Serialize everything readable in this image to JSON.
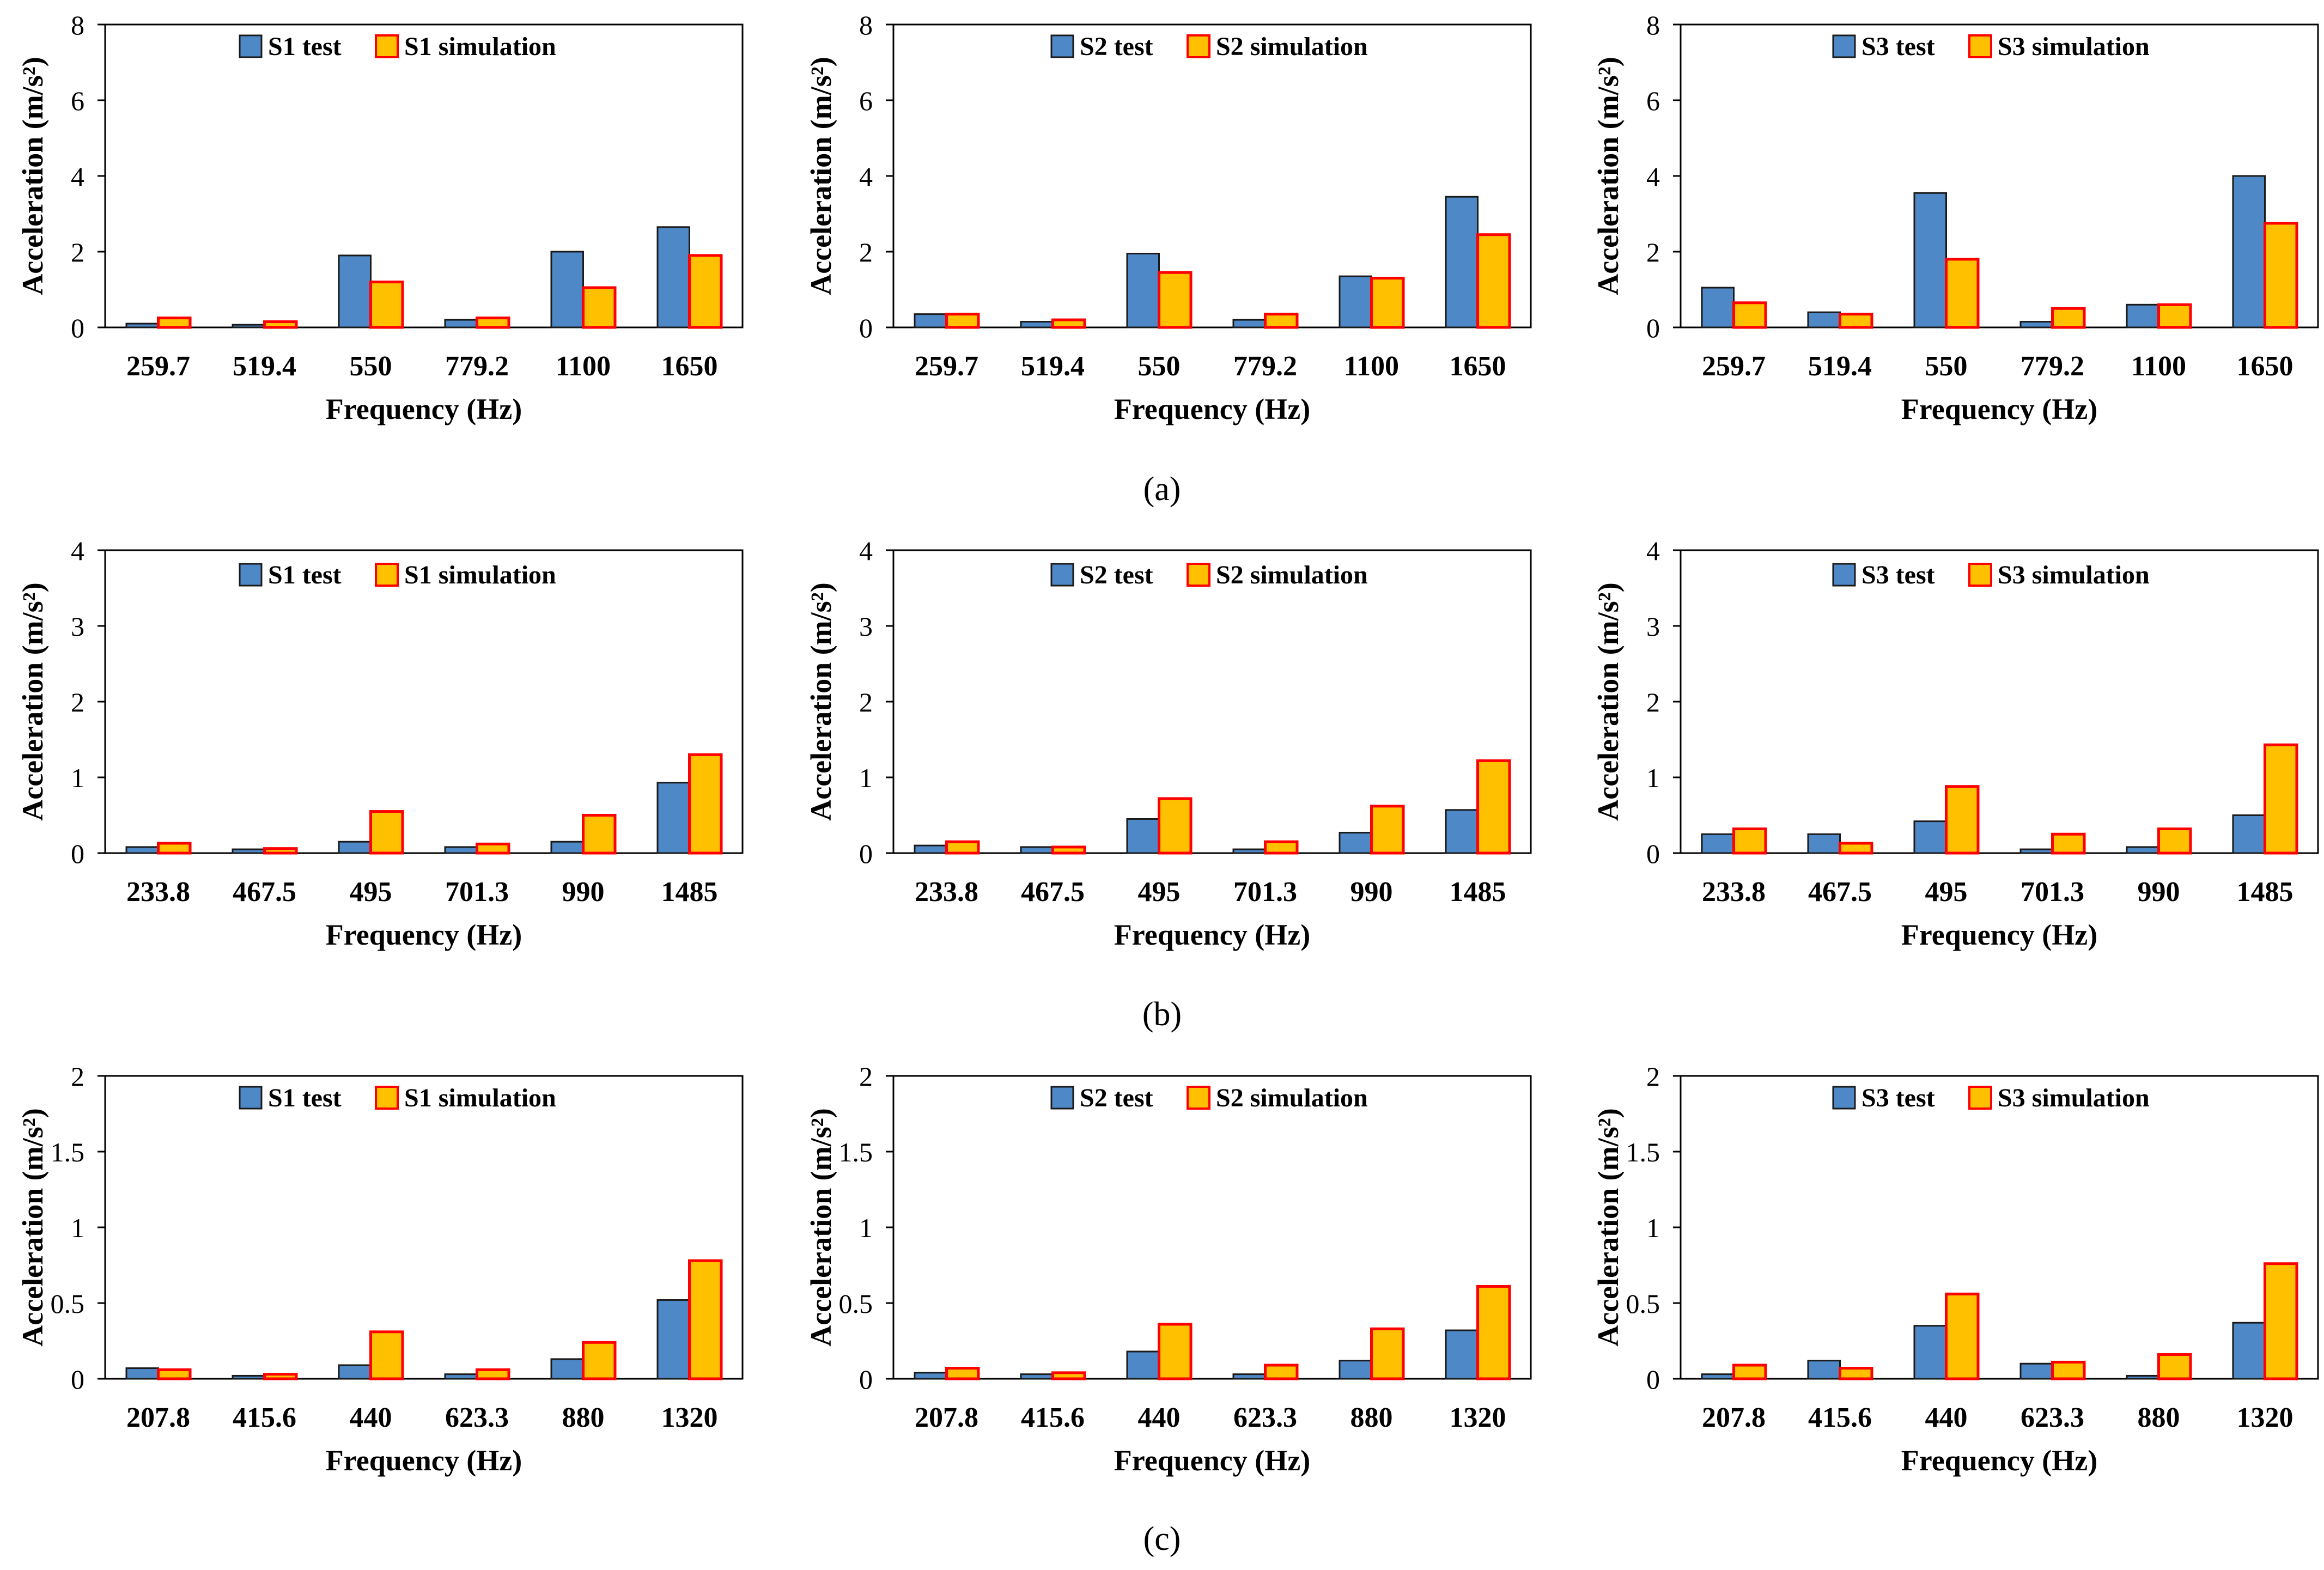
{
  "figure": {
    "captions": [
      "(a)",
      "(b)",
      "(c)"
    ],
    "colors": {
      "test": "#4f88c6",
      "test_stroke": "#1a1a1a",
      "simulation": "#ffc000",
      "simulation_stroke": "#ff0000",
      "axis": "#000000"
    }
  },
  "chart_data": [
    {
      "type": "bar",
      "row": "a",
      "title": "",
      "xlabel": "Frequency (Hz)",
      "ylabel": "Acceleration (m/s²)",
      "ylim": [
        0,
        8
      ],
      "yticks": [
        "0",
        "2",
        "4",
        "6",
        "8"
      ],
      "categories": [
        "259.7",
        "519.4",
        "550",
        "779.2",
        "1100",
        "1650"
      ],
      "series": [
        {
          "name": "S1 test",
          "values": [
            0.1,
            0.07,
            1.9,
            0.2,
            2.0,
            2.65
          ]
        },
        {
          "name": "S1 simulation",
          "values": [
            0.25,
            0.15,
            1.2,
            0.25,
            1.05,
            1.9
          ]
        }
      ],
      "legend": "top-center"
    },
    {
      "type": "bar",
      "row": "a",
      "title": "",
      "xlabel": "Frequency (Hz)",
      "ylabel": "Acceleration (m/s²)",
      "ylim": [
        0,
        8
      ],
      "yticks": [
        "0",
        "2",
        "4",
        "6",
        "8"
      ],
      "categories": [
        "259.7",
        "519.4",
        "550",
        "779.2",
        "1100",
        "1650"
      ],
      "series": [
        {
          "name": "S2 test",
          "values": [
            0.35,
            0.15,
            1.95,
            0.2,
            1.35,
            3.45
          ]
        },
        {
          "name": "S2 simulation",
          "values": [
            0.35,
            0.2,
            1.45,
            0.35,
            1.3,
            2.45
          ]
        }
      ],
      "legend": "top-center"
    },
    {
      "type": "bar",
      "row": "a",
      "title": "",
      "xlabel": "Frequency (Hz)",
      "ylabel": "Acceleration (m/s²)",
      "ylim": [
        0,
        8
      ],
      "yticks": [
        "0",
        "2",
        "4",
        "6",
        "8"
      ],
      "categories": [
        "259.7",
        "519.4",
        "550",
        "779.2",
        "1100",
        "1650"
      ],
      "series": [
        {
          "name": "S3 test",
          "values": [
            1.05,
            0.4,
            3.55,
            0.15,
            0.6,
            4.0
          ]
        },
        {
          "name": "S3 simulation",
          "values": [
            0.65,
            0.35,
            1.8,
            0.5,
            0.6,
            2.75
          ]
        }
      ],
      "legend": "top-center"
    },
    {
      "type": "bar",
      "row": "b",
      "title": "",
      "xlabel": "Frequency (Hz)",
      "ylabel": "Acceleration (m/s²)",
      "ylim": [
        0,
        4
      ],
      "yticks": [
        "0",
        "1",
        "2",
        "3",
        "4"
      ],
      "categories": [
        "233.8",
        "467.5",
        "495",
        "701.3",
        "990",
        "1485"
      ],
      "series": [
        {
          "name": "S1 test",
          "values": [
            0.08,
            0.05,
            0.15,
            0.08,
            0.15,
            0.93
          ]
        },
        {
          "name": "S1 simulation",
          "values": [
            0.13,
            0.06,
            0.55,
            0.12,
            0.5,
            1.3
          ]
        }
      ],
      "legend": "top-center"
    },
    {
      "type": "bar",
      "row": "b",
      "title": "",
      "xlabel": "Frequency (Hz)",
      "ylabel": "Acceleration (m/s²)",
      "ylim": [
        0,
        4
      ],
      "yticks": [
        "0",
        "1",
        "2",
        "3",
        "4"
      ],
      "categories": [
        "233.8",
        "467.5",
        "495",
        "701.3",
        "990",
        "1485"
      ],
      "series": [
        {
          "name": "S2 test",
          "values": [
            0.1,
            0.08,
            0.45,
            0.05,
            0.27,
            0.57
          ]
        },
        {
          "name": "S2 simulation",
          "values": [
            0.15,
            0.08,
            0.72,
            0.15,
            0.62,
            1.22
          ]
        }
      ],
      "legend": "top-center"
    },
    {
      "type": "bar",
      "row": "b",
      "title": "",
      "xlabel": "Frequency (Hz)",
      "ylabel": "Acceleration (m/s²)",
      "ylim": [
        0,
        4
      ],
      "yticks": [
        "0",
        "1",
        "2",
        "3",
        "4"
      ],
      "categories": [
        "233.8",
        "467.5",
        "495",
        "701.3",
        "990",
        "1485"
      ],
      "series": [
        {
          "name": "S3 test",
          "values": [
            0.25,
            0.25,
            0.42,
            0.05,
            0.08,
            0.5
          ]
        },
        {
          "name": "S3 simulation",
          "values": [
            0.32,
            0.13,
            0.88,
            0.25,
            0.32,
            1.43
          ]
        }
      ],
      "legend": "top-center"
    },
    {
      "type": "bar",
      "row": "c",
      "title": "",
      "xlabel": "Frequency (Hz)",
      "ylabel": "Acceleration (m/s²)",
      "ylim": [
        0,
        2
      ],
      "yticks": [
        "0",
        "0.5",
        "1",
        "1.5",
        "2"
      ],
      "categories": [
        "207.8",
        "415.6",
        "440",
        "623.3",
        "880",
        "1320"
      ],
      "series": [
        {
          "name": "S1 test",
          "values": [
            0.07,
            0.02,
            0.09,
            0.03,
            0.13,
            0.52
          ]
        },
        {
          "name": "S1 simulation",
          "values": [
            0.06,
            0.03,
            0.31,
            0.06,
            0.24,
            0.78
          ]
        }
      ],
      "legend": "top-center"
    },
    {
      "type": "bar",
      "row": "c",
      "title": "",
      "xlabel": "Frequency (Hz)",
      "ylabel": "Acceleration (m/s²)",
      "ylim": [
        0,
        2
      ],
      "yticks": [
        "0",
        "0.5",
        "1",
        "1.5",
        "2"
      ],
      "categories": [
        "207.8",
        "415.6",
        "440",
        "623.3",
        "880",
        "1320"
      ],
      "series": [
        {
          "name": "S2 test",
          "values": [
            0.04,
            0.03,
            0.18,
            0.03,
            0.12,
            0.32
          ]
        },
        {
          "name": "S2 simulation",
          "values": [
            0.07,
            0.04,
            0.36,
            0.09,
            0.33,
            0.61
          ]
        }
      ],
      "legend": "top-center"
    },
    {
      "type": "bar",
      "row": "c",
      "title": "",
      "xlabel": "Frequency (Hz)",
      "ylabel": "Acceleration (m/s²)",
      "ylim": [
        0,
        2
      ],
      "yticks": [
        "0",
        "0.5",
        "1",
        "1.5",
        "2"
      ],
      "categories": [
        "207.8",
        "415.6",
        "440",
        "623.3",
        "880",
        "1320"
      ],
      "series": [
        {
          "name": "S3 test",
          "values": [
            0.03,
            0.12,
            0.35,
            0.1,
            0.02,
            0.37
          ]
        },
        {
          "name": "S3 simulation",
          "values": [
            0.09,
            0.07,
            0.56,
            0.11,
            0.16,
            0.76
          ]
        }
      ],
      "legend": "top-center"
    }
  ]
}
